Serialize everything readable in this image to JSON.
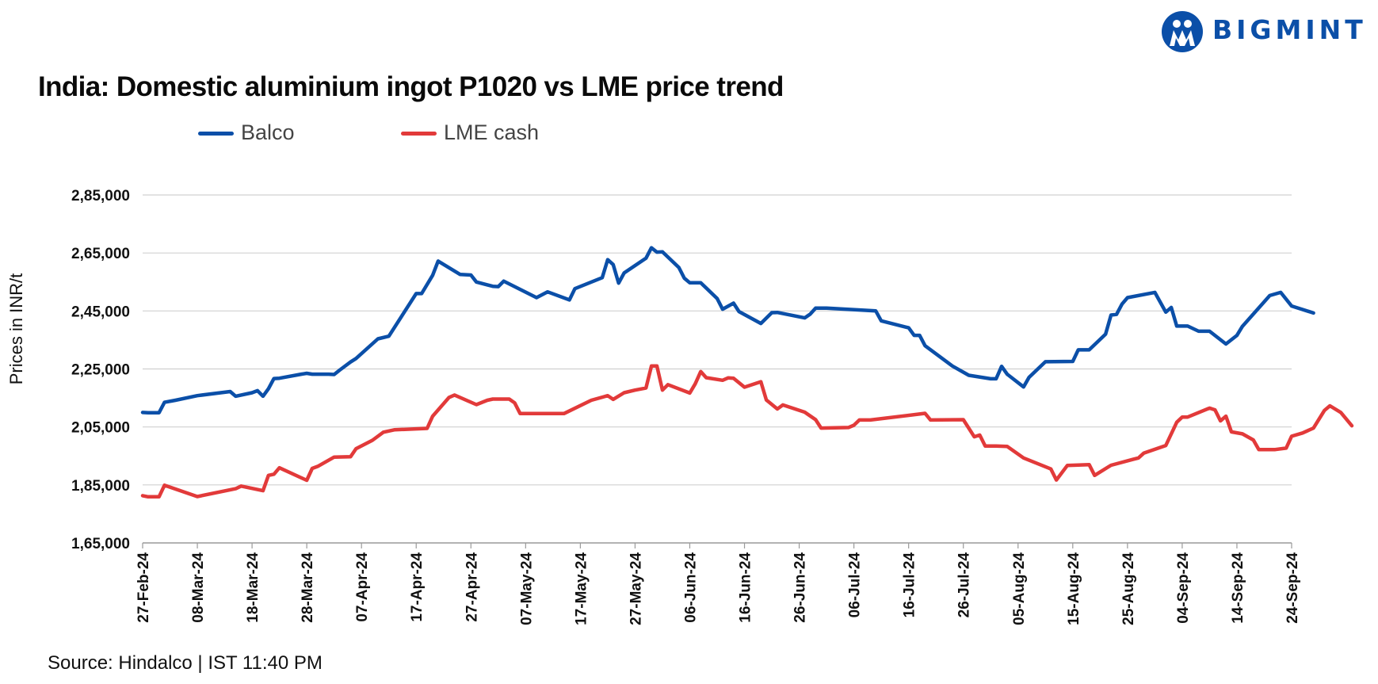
{
  "brand": {
    "name": "BIGMINT",
    "color": "#0b4fa8",
    "icon": "bigmint-logo-icon"
  },
  "source_text": "Source: Hindalco | IST 11:40 PM",
  "chart_data": {
    "type": "line",
    "title": "India: Domestic aluminium ingot P1020 vs LME price trend",
    "ylabel": "Prices in INR/t",
    "xlabel": "",
    "ylim": [
      165000,
      285000
    ],
    "yticks": [
      165000,
      185000,
      205000,
      225000,
      245000,
      265000,
      285000
    ],
    "ytick_labels": [
      "1,65,000",
      "1,85,000",
      "2,05,000",
      "2,25,000",
      "2,45,000",
      "2,65,000",
      "2,85,000"
    ],
    "xlim": [
      "2024-02-27",
      "2024-09-24"
    ],
    "xticks": [
      "2024-02-27",
      "2024-03-08",
      "2024-03-18",
      "2024-03-28",
      "2024-04-07",
      "2024-04-17",
      "2024-04-27",
      "2024-05-07",
      "2024-05-17",
      "2024-05-27",
      "2024-06-06",
      "2024-06-16",
      "2024-06-26",
      "2024-07-06",
      "2024-07-16",
      "2024-07-26",
      "2024-08-05",
      "2024-08-15",
      "2024-08-25",
      "2024-09-04",
      "2024-09-14",
      "2024-09-24"
    ],
    "xtick_labels": [
      "27-Feb-24",
      "08-Mar-24",
      "18-Mar-24",
      "28-Mar-24",
      "07-Apr-24",
      "17-Apr-24",
      "27-Apr-24",
      "07-May-24",
      "17-May-24",
      "27-May-24",
      "06-Jun-24",
      "16-Jun-24",
      "26-Jun-24",
      "06-Jul-24",
      "16-Jul-24",
      "26-Jul-24",
      "05-Aug-24",
      "15-Aug-24",
      "25-Aug-24",
      "04-Sep-24",
      "14-Sep-24",
      "24-Sep-24"
    ],
    "grid": true,
    "legend_position": "top-left",
    "series": [
      {
        "name": "Balco",
        "color": "#0b4fa8",
        "points": [
          [
            "2024-02-27",
            210000
          ],
          [
            "2024-02-28",
            209900
          ],
          [
            "2024-03-01",
            209900
          ],
          [
            "2024-03-02",
            213500
          ],
          [
            "2024-03-04",
            214200
          ],
          [
            "2024-03-08",
            215800
          ],
          [
            "2024-03-14",
            217200
          ],
          [
            "2024-03-15",
            215600
          ],
          [
            "2024-03-18",
            216800
          ],
          [
            "2024-03-19",
            217500
          ],
          [
            "2024-03-20",
            215600
          ],
          [
            "2024-03-21",
            218200
          ],
          [
            "2024-03-22",
            221700
          ],
          [
            "2024-03-23",
            221800
          ],
          [
            "2024-03-27",
            223200
          ],
          [
            "2024-03-28",
            223500
          ],
          [
            "2024-03-29",
            223200
          ],
          [
            "2024-04-01",
            223200
          ],
          [
            "2024-04-02",
            223100
          ],
          [
            "2024-04-03",
            224600
          ],
          [
            "2024-04-05",
            227400
          ],
          [
            "2024-04-06",
            228600
          ],
          [
            "2024-04-10",
            235400
          ],
          [
            "2024-04-12",
            236300
          ],
          [
            "2024-04-17",
            251000
          ],
          [
            "2024-04-18",
            251000
          ],
          [
            "2024-04-20",
            257300
          ],
          [
            "2024-04-21",
            262200
          ],
          [
            "2024-04-25",
            257600
          ],
          [
            "2024-04-27",
            257400
          ],
          [
            "2024-04-28",
            255000
          ],
          [
            "2024-04-30",
            254000
          ],
          [
            "2024-05-01",
            253500
          ],
          [
            "2024-05-02",
            253400
          ],
          [
            "2024-05-03",
            255300
          ],
          [
            "2024-05-09",
            249600
          ],
          [
            "2024-05-11",
            251600
          ],
          [
            "2024-05-15",
            248800
          ],
          [
            "2024-05-16",
            252700
          ],
          [
            "2024-05-21",
            256500
          ],
          [
            "2024-05-22",
            262700
          ],
          [
            "2024-05-23",
            261000
          ],
          [
            "2024-05-24",
            254600
          ],
          [
            "2024-05-25",
            258100
          ],
          [
            "2024-05-29",
            263200
          ],
          [
            "2024-05-30",
            266800
          ],
          [
            "2024-05-31",
            265300
          ],
          [
            "2024-06-01",
            265400
          ],
          [
            "2024-06-04",
            260000
          ],
          [
            "2024-06-05",
            256300
          ],
          [
            "2024-06-06",
            254700
          ],
          [
            "2024-06-08",
            254700
          ],
          [
            "2024-06-11",
            249300
          ],
          [
            "2024-06-12",
            245600
          ],
          [
            "2024-06-14",
            247700
          ],
          [
            "2024-06-15",
            244800
          ],
          [
            "2024-06-19",
            240700
          ],
          [
            "2024-06-21",
            244400
          ],
          [
            "2024-06-22",
            244500
          ],
          [
            "2024-06-27",
            242600
          ],
          [
            "2024-06-28",
            243900
          ],
          [
            "2024-06-29",
            246000
          ],
          [
            "2024-07-01",
            246000
          ],
          [
            "2024-07-10",
            245000
          ],
          [
            "2024-07-11",
            241600
          ],
          [
            "2024-07-16",
            239200
          ],
          [
            "2024-07-17",
            236600
          ],
          [
            "2024-07-18",
            236600
          ],
          [
            "2024-07-19",
            233000
          ],
          [
            "2024-07-24",
            226000
          ],
          [
            "2024-07-27",
            222800
          ],
          [
            "2024-07-31",
            221600
          ],
          [
            "2024-08-01",
            221600
          ],
          [
            "2024-08-02",
            225900
          ],
          [
            "2024-08-03",
            223200
          ],
          [
            "2024-08-06",
            218800
          ],
          [
            "2024-08-07",
            222100
          ],
          [
            "2024-08-10",
            227500
          ],
          [
            "2024-08-15",
            227600
          ],
          [
            "2024-08-16",
            231600
          ],
          [
            "2024-08-18",
            231600
          ],
          [
            "2024-08-21",
            237000
          ],
          [
            "2024-08-22",
            243600
          ],
          [
            "2024-08-23",
            243800
          ],
          [
            "2024-08-24",
            247400
          ],
          [
            "2024-08-25",
            249600
          ],
          [
            "2024-08-30",
            251400
          ],
          [
            "2024-09-01",
            244600
          ],
          [
            "2024-09-02",
            246200
          ],
          [
            "2024-09-03",
            239800
          ],
          [
            "2024-09-05",
            239800
          ],
          [
            "2024-09-07",
            238000
          ],
          [
            "2024-09-09",
            238000
          ],
          [
            "2024-09-12",
            233600
          ],
          [
            "2024-09-14",
            236600
          ],
          [
            "2024-09-15",
            239700
          ],
          [
            "2024-09-20",
            250300
          ],
          [
            "2024-09-22",
            251400
          ],
          [
            "2024-09-24",
            246700
          ],
          [
            "2024-09-28",
            244300
          ]
        ]
      },
      {
        "name": "LME cash",
        "color": "#e23a3a",
        "points": [
          [
            "2024-02-27",
            181300
          ],
          [
            "2024-02-28",
            180900
          ],
          [
            "2024-03-01",
            180900
          ],
          [
            "2024-03-02",
            184900
          ],
          [
            "2024-03-08",
            181000
          ],
          [
            "2024-03-15",
            183700
          ],
          [
            "2024-03-16",
            184600
          ],
          [
            "2024-03-20",
            183000
          ],
          [
            "2024-03-21",
            188300
          ],
          [
            "2024-03-22",
            188700
          ],
          [
            "2024-03-23",
            190900
          ],
          [
            "2024-03-28",
            186600
          ],
          [
            "2024-03-29",
            190700
          ],
          [
            "2024-03-30",
            191400
          ],
          [
            "2024-04-02",
            194600
          ],
          [
            "2024-04-05",
            194700
          ],
          [
            "2024-04-06",
            197500
          ],
          [
            "2024-04-09",
            200400
          ],
          [
            "2024-04-11",
            203200
          ],
          [
            "2024-04-13",
            204000
          ],
          [
            "2024-04-19",
            204500
          ],
          [
            "2024-04-20",
            208700
          ],
          [
            "2024-04-23",
            215200
          ],
          [
            "2024-04-24",
            216000
          ],
          [
            "2024-04-28",
            212700
          ],
          [
            "2024-04-30",
            214200
          ],
          [
            "2024-05-01",
            214600
          ],
          [
            "2024-05-04",
            214600
          ],
          [
            "2024-05-05",
            213300
          ],
          [
            "2024-05-06",
            209600
          ],
          [
            "2024-05-14",
            209600
          ],
          [
            "2024-05-19",
            214200
          ],
          [
            "2024-05-22",
            215800
          ],
          [
            "2024-05-23",
            214500
          ],
          [
            "2024-05-25",
            216800
          ],
          [
            "2024-05-27",
            217700
          ],
          [
            "2024-05-29",
            218400
          ],
          [
            "2024-05-30",
            226000
          ],
          [
            "2024-05-31",
            226000
          ],
          [
            "2024-06-01",
            217700
          ],
          [
            "2024-06-02",
            219600
          ],
          [
            "2024-06-06",
            216700
          ],
          [
            "2024-06-07",
            219900
          ],
          [
            "2024-06-08",
            224100
          ],
          [
            "2024-06-09",
            222000
          ],
          [
            "2024-06-12",
            221100
          ],
          [
            "2024-06-13",
            221900
          ],
          [
            "2024-06-14",
            221800
          ],
          [
            "2024-06-16",
            218700
          ],
          [
            "2024-06-19",
            220600
          ],
          [
            "2024-06-20",
            214300
          ],
          [
            "2024-06-22",
            211200
          ],
          [
            "2024-06-23",
            212600
          ],
          [
            "2024-06-27",
            210100
          ],
          [
            "2024-06-29",
            207500
          ],
          [
            "2024-06-30",
            204600
          ],
          [
            "2024-07-05",
            204800
          ],
          [
            "2024-07-06",
            205600
          ],
          [
            "2024-07-07",
            207400
          ],
          [
            "2024-07-09",
            207400
          ],
          [
            "2024-07-19",
            209700
          ],
          [
            "2024-07-20",
            207400
          ],
          [
            "2024-07-26",
            207500
          ],
          [
            "2024-07-28",
            201600
          ],
          [
            "2024-07-29",
            202200
          ],
          [
            "2024-07-30",
            198400
          ],
          [
            "2024-08-01",
            198400
          ],
          [
            "2024-08-03",
            198300
          ],
          [
            "2024-08-06",
            194300
          ],
          [
            "2024-08-11",
            190500
          ],
          [
            "2024-08-12",
            186700
          ],
          [
            "2024-08-14",
            191700
          ],
          [
            "2024-08-18",
            192000
          ],
          [
            "2024-08-19",
            188300
          ],
          [
            "2024-08-22",
            191800
          ],
          [
            "2024-08-26",
            193800
          ],
          [
            "2024-08-27",
            194300
          ],
          [
            "2024-08-28",
            196000
          ],
          [
            "2024-09-01",
            198600
          ],
          [
            "2024-09-03",
            206600
          ],
          [
            "2024-09-04",
            208400
          ],
          [
            "2024-09-05",
            208400
          ],
          [
            "2024-09-09",
            211500
          ],
          [
            "2024-09-10",
            210900
          ],
          [
            "2024-09-11",
            207100
          ],
          [
            "2024-09-12",
            208700
          ],
          [
            "2024-09-13",
            203300
          ],
          [
            "2024-09-15",
            202600
          ],
          [
            "2024-09-17",
            200500
          ],
          [
            "2024-09-18",
            197200
          ],
          [
            "2024-09-21",
            197200
          ],
          [
            "2024-09-23",
            197700
          ],
          [
            "2024-09-24",
            201800
          ],
          [
            "2024-09-26",
            202900
          ],
          [
            "2024-09-28",
            204600
          ],
          [
            "2024-09-30",
            210700
          ],
          [
            "2024-10-01",
            212300
          ],
          [
            "2024-10-03",
            210000
          ],
          [
            "2024-10-05",
            205400
          ]
        ]
      }
    ]
  }
}
